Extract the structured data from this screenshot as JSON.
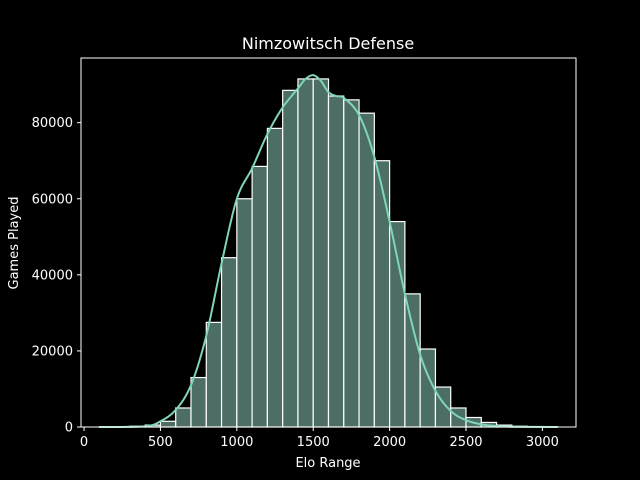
{
  "chart_data": {
    "type": "bar",
    "title": "Nimzowitsch Defense",
    "xlabel": "Elo Range",
    "ylabel": "Games Played",
    "xlim": [
      -20,
      3220
    ],
    "ylim": [
      0,
      97000
    ],
    "xticks": [
      0,
      500,
      1000,
      1500,
      2000,
      2500,
      3000
    ],
    "yticks": [
      0,
      20000,
      40000,
      60000,
      80000
    ],
    "grid": false,
    "bins": {
      "edges": [
        100,
        200,
        300,
        400,
        500,
        600,
        700,
        800,
        900,
        1000,
        1100,
        1200,
        1300,
        1400,
        1500,
        1600,
        1700,
        1800,
        1900,
        2000,
        2100,
        2200,
        2300,
        2400,
        2500,
        2600,
        2700,
        2800,
        2900,
        3000,
        3100
      ],
      "values": [
        50,
        100,
        200,
        500,
        1500,
        5000,
        13000,
        27500,
        44500,
        60000,
        68500,
        78500,
        88500,
        91500,
        91500,
        87000,
        86000,
        82500,
        70000,
        54000,
        35000,
        20500,
        10500,
        5000,
        2500,
        1200,
        500,
        200,
        100,
        50
      ]
    },
    "kde": {
      "x": [
        100,
        400,
        500,
        600,
        700,
        800,
        900,
        1000,
        1100,
        1200,
        1300,
        1400,
        1450,
        1500,
        1550,
        1600,
        1650,
        1700,
        1800,
        1900,
        2000,
        2100,
        2200,
        2300,
        2400,
        2500,
        2600,
        2700,
        2800,
        3100
      ],
      "y": [
        0,
        200,
        1500,
        4500,
        11000,
        24000,
        43000,
        60000,
        68000,
        77000,
        84000,
        89000,
        91500,
        92500,
        91000,
        88000,
        87000,
        86500,
        82000,
        71000,
        54000,
        35000,
        19000,
        9500,
        4200,
        1800,
        700,
        250,
        80,
        0
      ]
    },
    "colors": {
      "bar_fill": "#4c6e64",
      "bar_edge": "#ffffff",
      "kde_line": "#7fd4bc",
      "axes": "#ffffff",
      "background": "#000000"
    }
  }
}
